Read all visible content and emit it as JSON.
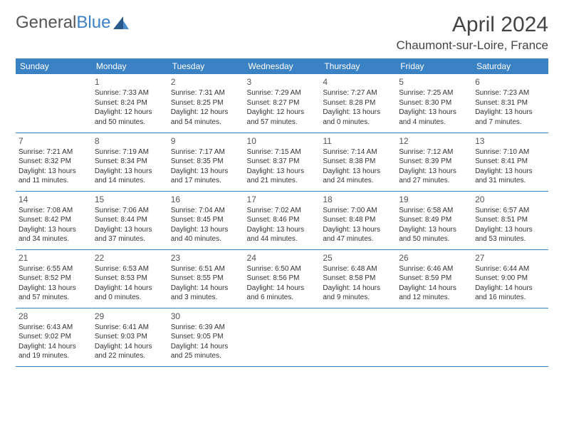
{
  "logo": {
    "part1": "General",
    "part2": "Blue"
  },
  "title": "April 2024",
  "location": "Chaumont-sur-Loire, France",
  "header_color": "#3b82c4",
  "day_headers": [
    "Sunday",
    "Monday",
    "Tuesday",
    "Wednesday",
    "Thursday",
    "Friday",
    "Saturday"
  ],
  "weeks": [
    [
      null,
      {
        "n": "1",
        "sr": "7:33 AM",
        "ss": "8:24 PM",
        "dl": "12 hours and 50 minutes."
      },
      {
        "n": "2",
        "sr": "7:31 AM",
        "ss": "8:25 PM",
        "dl": "12 hours and 54 minutes."
      },
      {
        "n": "3",
        "sr": "7:29 AM",
        "ss": "8:27 PM",
        "dl": "12 hours and 57 minutes."
      },
      {
        "n": "4",
        "sr": "7:27 AM",
        "ss": "8:28 PM",
        "dl": "13 hours and 0 minutes."
      },
      {
        "n": "5",
        "sr": "7:25 AM",
        "ss": "8:30 PM",
        "dl": "13 hours and 4 minutes."
      },
      {
        "n": "6",
        "sr": "7:23 AM",
        "ss": "8:31 PM",
        "dl": "13 hours and 7 minutes."
      }
    ],
    [
      {
        "n": "7",
        "sr": "7:21 AM",
        "ss": "8:32 PM",
        "dl": "13 hours and 11 minutes."
      },
      {
        "n": "8",
        "sr": "7:19 AM",
        "ss": "8:34 PM",
        "dl": "13 hours and 14 minutes."
      },
      {
        "n": "9",
        "sr": "7:17 AM",
        "ss": "8:35 PM",
        "dl": "13 hours and 17 minutes."
      },
      {
        "n": "10",
        "sr": "7:15 AM",
        "ss": "8:37 PM",
        "dl": "13 hours and 21 minutes."
      },
      {
        "n": "11",
        "sr": "7:14 AM",
        "ss": "8:38 PM",
        "dl": "13 hours and 24 minutes."
      },
      {
        "n": "12",
        "sr": "7:12 AM",
        "ss": "8:39 PM",
        "dl": "13 hours and 27 minutes."
      },
      {
        "n": "13",
        "sr": "7:10 AM",
        "ss": "8:41 PM",
        "dl": "13 hours and 31 minutes."
      }
    ],
    [
      {
        "n": "14",
        "sr": "7:08 AM",
        "ss": "8:42 PM",
        "dl": "13 hours and 34 minutes."
      },
      {
        "n": "15",
        "sr": "7:06 AM",
        "ss": "8:44 PM",
        "dl": "13 hours and 37 minutes."
      },
      {
        "n": "16",
        "sr": "7:04 AM",
        "ss": "8:45 PM",
        "dl": "13 hours and 40 minutes."
      },
      {
        "n": "17",
        "sr": "7:02 AM",
        "ss": "8:46 PM",
        "dl": "13 hours and 44 minutes."
      },
      {
        "n": "18",
        "sr": "7:00 AM",
        "ss": "8:48 PM",
        "dl": "13 hours and 47 minutes."
      },
      {
        "n": "19",
        "sr": "6:58 AM",
        "ss": "8:49 PM",
        "dl": "13 hours and 50 minutes."
      },
      {
        "n": "20",
        "sr": "6:57 AM",
        "ss": "8:51 PM",
        "dl": "13 hours and 53 minutes."
      }
    ],
    [
      {
        "n": "21",
        "sr": "6:55 AM",
        "ss": "8:52 PM",
        "dl": "13 hours and 57 minutes."
      },
      {
        "n": "22",
        "sr": "6:53 AM",
        "ss": "8:53 PM",
        "dl": "14 hours and 0 minutes."
      },
      {
        "n": "23",
        "sr": "6:51 AM",
        "ss": "8:55 PM",
        "dl": "14 hours and 3 minutes."
      },
      {
        "n": "24",
        "sr": "6:50 AM",
        "ss": "8:56 PM",
        "dl": "14 hours and 6 minutes."
      },
      {
        "n": "25",
        "sr": "6:48 AM",
        "ss": "8:58 PM",
        "dl": "14 hours and 9 minutes."
      },
      {
        "n": "26",
        "sr": "6:46 AM",
        "ss": "8:59 PM",
        "dl": "14 hours and 12 minutes."
      },
      {
        "n": "27",
        "sr": "6:44 AM",
        "ss": "9:00 PM",
        "dl": "14 hours and 16 minutes."
      }
    ],
    [
      {
        "n": "28",
        "sr": "6:43 AM",
        "ss": "9:02 PM",
        "dl": "14 hours and 19 minutes."
      },
      {
        "n": "29",
        "sr": "6:41 AM",
        "ss": "9:03 PM",
        "dl": "14 hours and 22 minutes."
      },
      {
        "n": "30",
        "sr": "6:39 AM",
        "ss": "9:05 PM",
        "dl": "14 hours and 25 minutes."
      },
      null,
      null,
      null,
      null
    ]
  ],
  "labels": {
    "sunrise": "Sunrise:",
    "sunset": "Sunset:",
    "daylight": "Daylight:"
  }
}
